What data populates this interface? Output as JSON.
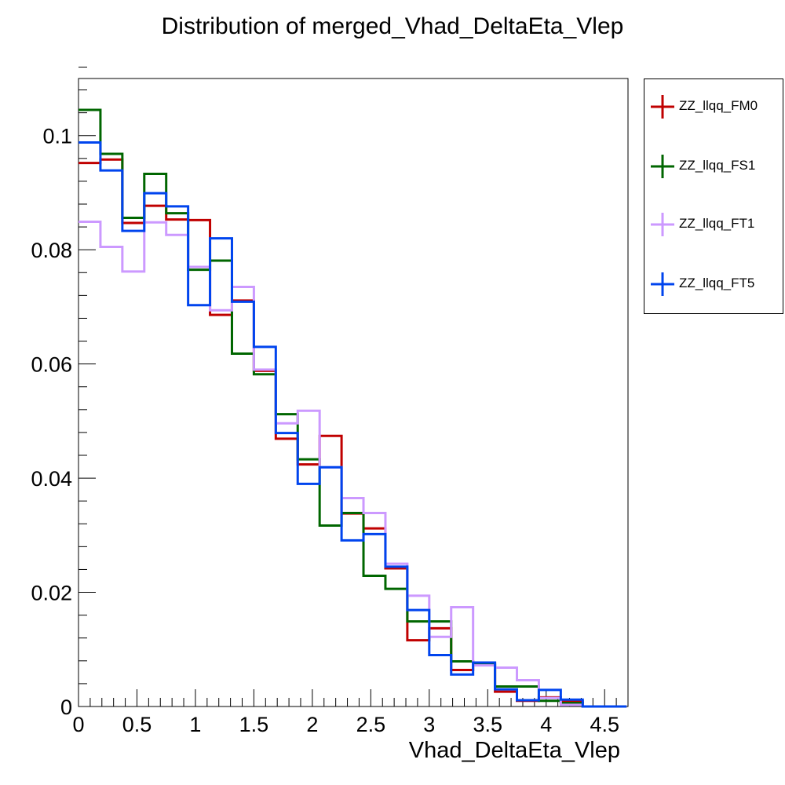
{
  "chart_data": {
    "type": "step",
    "title": "Distribution of merged_Vhad_DeltaEta_Vlep",
    "xlabel": "Vhad_DeltaEta_Vlep",
    "ylabel": "",
    "xlim": [
      0,
      4.7
    ],
    "ylim": [
      0,
      0.11
    ],
    "bin_edges": [
      0,
      0.1875,
      0.375,
      0.5625,
      0.75,
      0.9375,
      1.125,
      1.3125,
      1.5,
      1.6875,
      1.875,
      2.0625,
      2.25,
      2.4375,
      2.625,
      2.8125,
      3.0,
      3.1875,
      3.375,
      3.5625,
      3.75,
      3.9375,
      4.125,
      4.3125,
      4.5,
      4.6875
    ],
    "x_ticks": [
      0,
      0.5,
      1,
      1.5,
      2,
      2.5,
      3,
      3.5,
      4,
      4.5
    ],
    "x_tick_labels": [
      "0",
      "0.5",
      "1",
      "1.5",
      "2",
      "2.5",
      "3",
      "3.5",
      "4",
      "4.5"
    ],
    "y_ticks": [
      0,
      0.02,
      0.04,
      0.06,
      0.08,
      0.1
    ],
    "y_tick_labels": [
      "0",
      "0.02",
      "0.04",
      "0.06",
      "0.08",
      "0.1"
    ],
    "legend_position": "right",
    "series": [
      {
        "name": "ZZ_llqq_FM0",
        "color": "#c00000",
        "values": [
          0.0952,
          0.0958,
          0.0847,
          0.0877,
          0.0853,
          0.0852,
          0.0686,
          0.0711,
          0.0588,
          0.0469,
          0.0424,
          0.0474,
          0.0338,
          0.0312,
          0.0242,
          0.0116,
          0.0137,
          0.0064,
          0.0076,
          0.0026,
          0.001,
          0.0016,
          0.0009,
          0.0,
          0.0
        ]
      },
      {
        "name": "ZZ_llqq_FS1",
        "color": "#006600",
        "values": [
          0.1045,
          0.0968,
          0.0856,
          0.0933,
          0.0864,
          0.0765,
          0.0781,
          0.0618,
          0.0582,
          0.0512,
          0.0433,
          0.0317,
          0.0339,
          0.0229,
          0.0206,
          0.0149,
          0.0149,
          0.0079,
          0.0073,
          0.0035,
          0.0035,
          0.001,
          0.0006,
          0.0,
          0.0
        ]
      },
      {
        "name": "ZZ_llqq_FT1",
        "color": "#cc99ff",
        "values": [
          0.0849,
          0.0805,
          0.0762,
          0.0848,
          0.0826,
          0.077,
          0.0694,
          0.0735,
          0.059,
          0.0496,
          0.0518,
          0.0419,
          0.0365,
          0.0339,
          0.025,
          0.0194,
          0.0122,
          0.0174,
          0.0072,
          0.0068,
          0.0046,
          0.0015,
          0.0003,
          0.0,
          0.0
        ]
      },
      {
        "name": "ZZ_llqq_FT5",
        "color": "#0044ee",
        "values": [
          0.0988,
          0.0939,
          0.0833,
          0.0899,
          0.0876,
          0.0703,
          0.082,
          0.0709,
          0.063,
          0.0479,
          0.039,
          0.0419,
          0.0291,
          0.0302,
          0.0245,
          0.0169,
          0.009,
          0.0056,
          0.0077,
          0.003,
          0.0011,
          0.0029,
          0.0012,
          0.0,
          0.0
        ]
      }
    ]
  }
}
